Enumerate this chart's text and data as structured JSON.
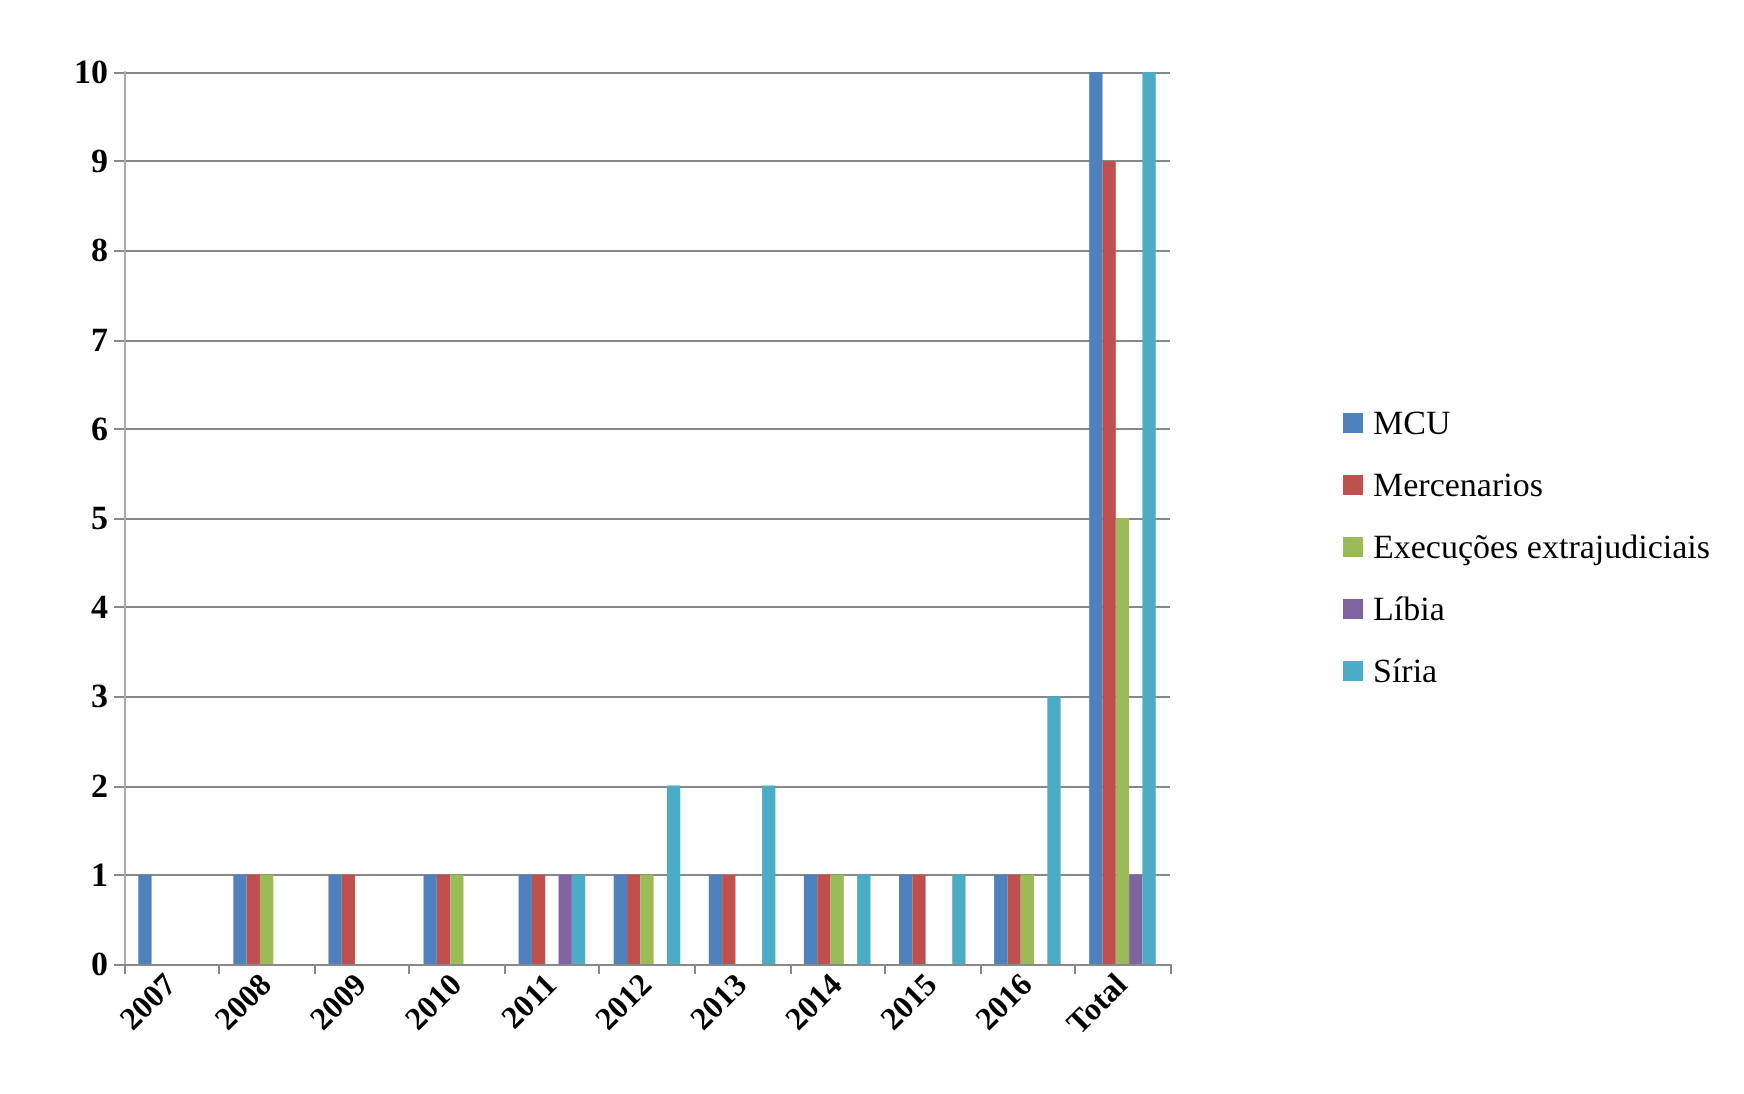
{
  "chart_data": {
    "type": "bar",
    "categories": [
      "2007",
      "2008",
      "2009",
      "2010",
      "2011",
      "2012",
      "2013",
      "2014",
      "2015",
      "2016",
      "Total"
    ],
    "series": [
      {
        "name": "MCU",
        "color": "#4f81bd",
        "values": [
          1,
          1,
          1,
          1,
          1,
          1,
          1,
          1,
          1,
          1,
          10
        ]
      },
      {
        "name": "Mercenarios",
        "color": "#c0504d",
        "values": [
          0,
          1,
          1,
          1,
          1,
          1,
          1,
          1,
          1,
          1,
          9
        ]
      },
      {
        "name": "Execuções extrajudiciais",
        "color": "#9bbb59",
        "values": [
          0,
          1,
          0,
          1,
          0,
          1,
          0,
          1,
          0,
          1,
          5
        ]
      },
      {
        "name": "Líbia",
        "color": "#8064a2",
        "values": [
          0,
          0,
          0,
          0,
          1,
          0,
          0,
          0,
          0,
          0,
          1
        ]
      },
      {
        "name": "Síria",
        "color": "#4bacc6",
        "values": [
          0,
          0,
          0,
          0,
          1,
          2,
          2,
          1,
          1,
          3,
          10
        ]
      }
    ],
    "ylim": [
      0,
      10
    ],
    "yticks": [
      0,
      1,
      2,
      3,
      4,
      5,
      6,
      7,
      8,
      9,
      10
    ],
    "grid": "y",
    "legend": "right"
  }
}
